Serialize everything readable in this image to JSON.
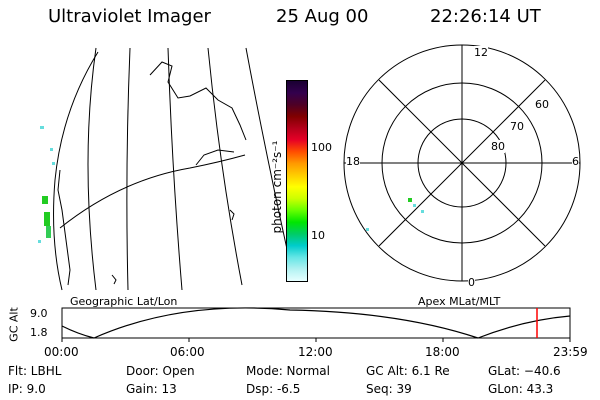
{
  "header": {
    "instrument": "Ultraviolet Imager",
    "date": "25 Aug 00",
    "time": "22:26:14 UT"
  },
  "colorbar": {
    "label": "photon cm⁻²s⁻¹",
    "tick_100": "100",
    "tick_10": "10",
    "colors": [
      "#1a0033",
      "#33004d",
      "#4d0026",
      "#800000",
      "#b3001a",
      "#e60026",
      "#ff4d00",
      "#ff9900",
      "#ffcc00",
      "#ffff00",
      "#ccff00",
      "#66ff00",
      "#00e600",
      "#00cc66",
      "#00cccc",
      "#66e6e6",
      "#b3f2f2",
      "#e6ffff"
    ]
  },
  "polar_plot": {
    "mlt_12": "12",
    "mlt_18": "18",
    "mlt_6": "6",
    "mlt_0": "0",
    "lat_60": "60",
    "lat_70": "70",
    "lat_80": "80"
  },
  "labels": {
    "left_panel": "Geographic Lat/Lon",
    "right_panel": "Apex MLat/MLT"
  },
  "altitude_plot": {
    "axis_label": "GC Alt",
    "y_max": "9.0",
    "y_min": "1.8",
    "x_ticks": [
      "00:00",
      "06:00",
      "12:00",
      "18:00",
      "23:59"
    ],
    "current_marker_color": "#ff0000"
  },
  "info": {
    "filter": "Flt: LBHL",
    "ip": "IP:  9.0",
    "door": "Door: Open",
    "gain": "Gain: 13",
    "mode": "Mode: Normal",
    "dsp": "Dsp:    -6.5",
    "gc_alt": "GC Alt: 6.1 Re",
    "seq": "Seq: 39",
    "glat": "GLat: −40.6",
    "glon": "GLon:  43.3"
  }
}
